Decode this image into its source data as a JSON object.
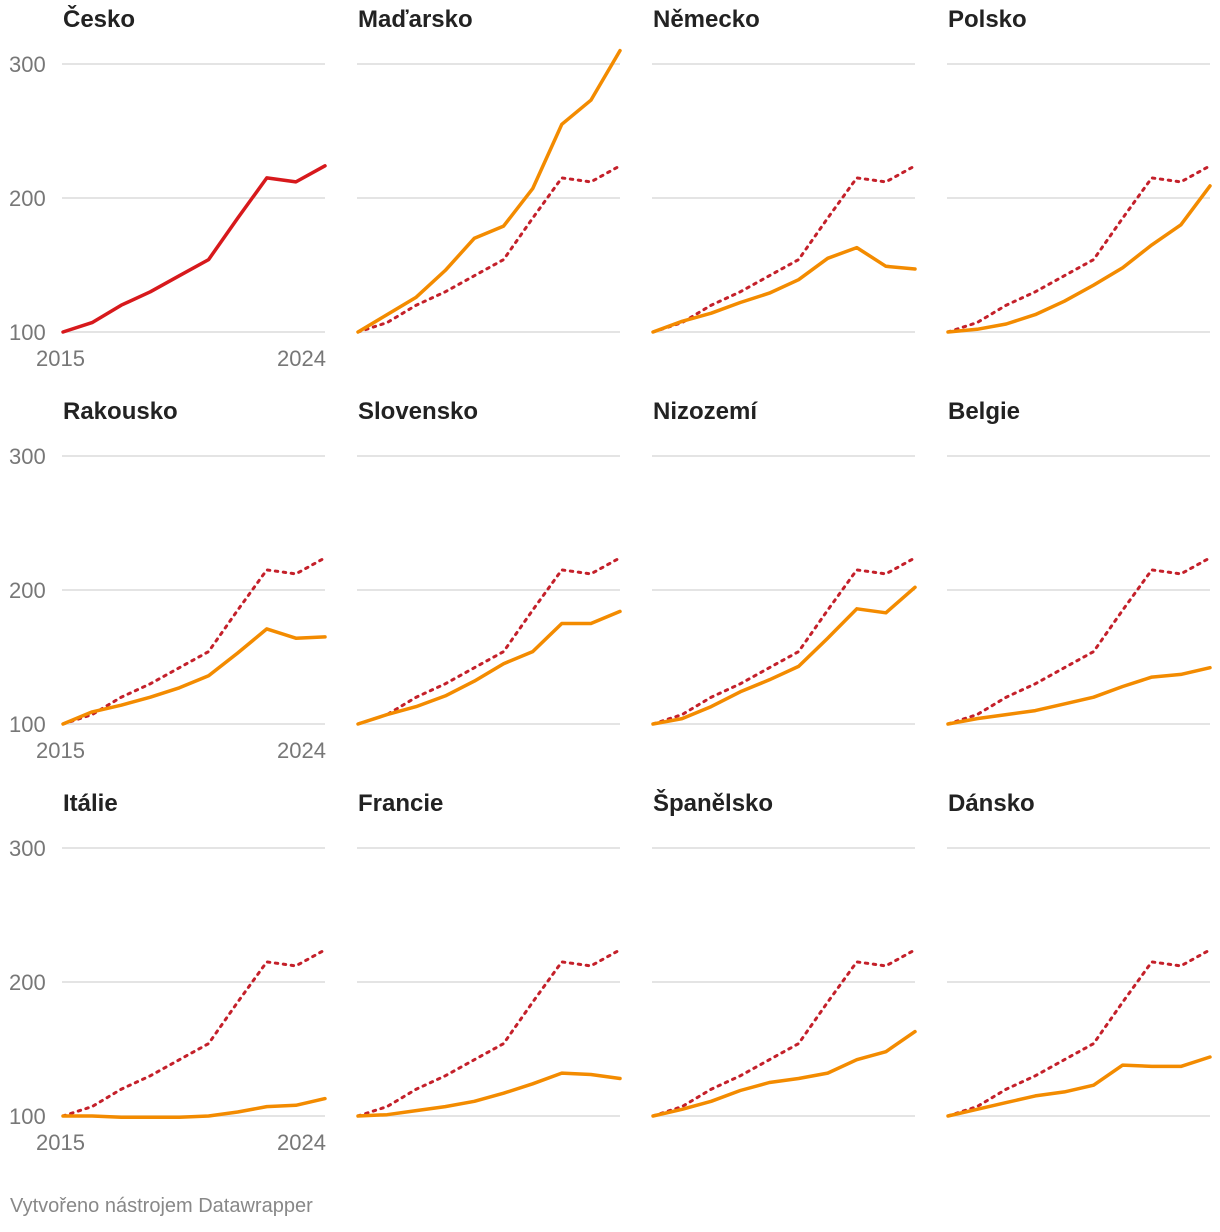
{
  "chart_data": {
    "type": "line",
    "title": "",
    "x": [
      2015,
      2016,
      2017,
      2018,
      2019,
      2020,
      2021,
      2022,
      2023,
      2024
    ],
    "x_tick_labels": [
      "2015",
      "2024"
    ],
    "y_ticks": [
      100,
      200,
      300
    ],
    "ylim": [
      100,
      300
    ],
    "grid": true,
    "reference": {
      "name": "Česko",
      "color": "#d7191c",
      "values": [
        100,
        107,
        120,
        130,
        142,
        154,
        185,
        215,
        212,
        224
      ]
    },
    "panels": [
      {
        "title": "Česko",
        "color": "#d7191c",
        "values": [
          100,
          107,
          120,
          130,
          142,
          154,
          185,
          215,
          212,
          224
        ]
      },
      {
        "title": "Maďarsko",
        "color": "#f38b00",
        "values": [
          100,
          113,
          126,
          146,
          170,
          179,
          207,
          255,
          273,
          310
        ]
      },
      {
        "title": "Německo",
        "color": "#f38b00",
        "values": [
          100,
          108,
          114,
          122,
          129,
          139,
          155,
          163,
          149,
          147
        ]
      },
      {
        "title": "Polsko",
        "color": "#f38b00",
        "values": [
          100,
          102,
          106,
          113,
          123,
          135,
          148,
          165,
          180,
          209
        ]
      },
      {
        "title": "Rakousko",
        "color": "#f38b00",
        "values": [
          100,
          109,
          114,
          120,
          127,
          136,
          153,
          171,
          164,
          165
        ]
      },
      {
        "title": "Slovensko",
        "color": "#f38b00",
        "values": [
          100,
          107,
          113,
          121,
          132,
          145,
          154,
          175,
          175,
          184
        ]
      },
      {
        "title": "Nizozemí",
        "color": "#f38b00",
        "values": [
          100,
          104,
          113,
          124,
          133,
          143,
          164,
          186,
          183,
          202
        ]
      },
      {
        "title": "Belgie",
        "color": "#f38b00",
        "values": [
          100,
          104,
          107,
          110,
          115,
          120,
          128,
          135,
          137,
          142
        ]
      },
      {
        "title": "Itálie",
        "color": "#f38b00",
        "values": [
          100,
          100,
          99,
          99,
          99,
          100,
          103,
          107,
          108,
          113
        ]
      },
      {
        "title": "Francie",
        "color": "#f38b00",
        "values": [
          100,
          101,
          104,
          107,
          111,
          117,
          124,
          132,
          131,
          128
        ]
      },
      {
        "title": "Španělsko",
        "color": "#f38b00",
        "values": [
          100,
          105,
          111,
          119,
          125,
          128,
          132,
          142,
          148,
          163
        ]
      },
      {
        "title": "Dánsko",
        "color": "#f38b00",
        "values": [
          100,
          105,
          110,
          115,
          118,
          123,
          138,
          137,
          137,
          144
        ]
      }
    ]
  },
  "footer": "Vytvořeno nástrojem Datawrapper"
}
